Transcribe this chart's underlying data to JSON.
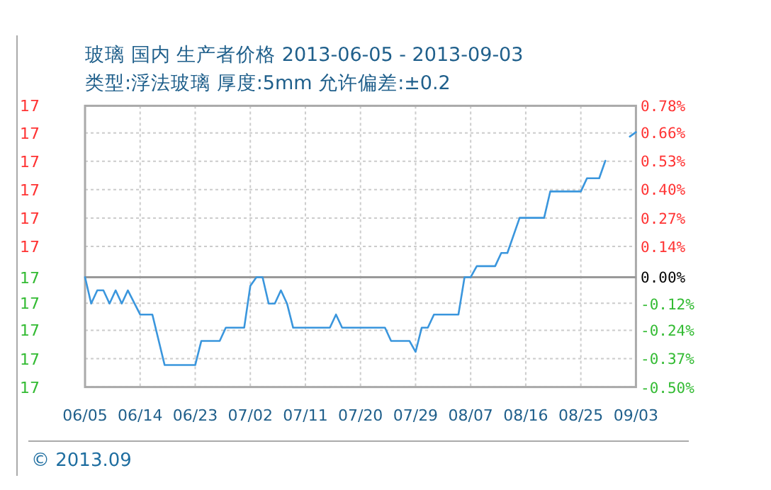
{
  "chart_data": {
    "type": "line",
    "title": "玻璃 国内 生产者价格 2013-06-05 - 2013-09-03",
    "subtitle": "类型:浮法玻璃 厚度:5mm 允许偏差:±0.2",
    "x": [
      "2013-06-05",
      "2013-06-06",
      "2013-06-07",
      "2013-06-08",
      "2013-06-09",
      "2013-06-10",
      "2013-06-11",
      "2013-06-12",
      "2013-06-14",
      "2013-06-16",
      "2013-06-18",
      "2013-06-23",
      "2013-06-24",
      "2013-06-27",
      "2013-06-28",
      "2013-07-01",
      "2013-07-02",
      "2013-07-03",
      "2013-07-04",
      "2013-07-05",
      "2013-07-06",
      "2013-07-07",
      "2013-07-08",
      "2013-07-09",
      "2013-07-15",
      "2013-07-16",
      "2013-07-17",
      "2013-07-24",
      "2013-07-25",
      "2013-07-28",
      "2013-07-29",
      "2013-07-30",
      "2013-07-31",
      "2013-08-01",
      "2013-08-05",
      "2013-08-06",
      "2013-08-07",
      "2013-08-08",
      "2013-08-11",
      "2013-08-12",
      "2013-08-13",
      "2013-08-15",
      "2013-08-19",
      "2013-08-20",
      "2013-08-25",
      "2013-08-26",
      "2013-08-28",
      "2013-08-29",
      "2013-08-30",
      "2013-09-02",
      "2013-09-03"
    ],
    "series": [
      {
        "color": "#3a96dd",
        "axis": "y2",
        "values": [
          0.0,
          -0.12,
          -0.06,
          -0.06,
          -0.12,
          -0.06,
          -0.12,
          -0.06,
          -0.17,
          -0.17,
          -0.4,
          -0.4,
          -0.29,
          -0.29,
          -0.23,
          -0.23,
          -0.04,
          0.0,
          0.0,
          -0.12,
          -0.12,
          -0.06,
          -0.12,
          -0.23,
          -0.23,
          -0.17,
          -0.23,
          -0.23,
          -0.29,
          -0.29,
          -0.34,
          -0.23,
          -0.23,
          -0.17,
          -0.17,
          0.0,
          0.0,
          0.05,
          0.05,
          0.11,
          0.11,
          0.27,
          0.27,
          0.39,
          0.39,
          0.45,
          0.45,
          0.53,
          null,
          0.64,
          0.66
        ]
      }
    ],
    "xlim": [
      "2013-06-05",
      "2013-09-03"
    ],
    "xticks": [
      {
        "value": "2013-06-05",
        "label": "06/05"
      },
      {
        "value": "2013-06-14",
        "label": "06/14"
      },
      {
        "value": "2013-06-23",
        "label": "06/23"
      },
      {
        "value": "2013-07-02",
        "label": "07/02"
      },
      {
        "value": "2013-07-11",
        "label": "07/11"
      },
      {
        "value": "2013-07-20",
        "label": "07/20"
      },
      {
        "value": "2013-07-29",
        "label": "07/29"
      },
      {
        "value": "2013-08-07",
        "label": "08/07"
      },
      {
        "value": "2013-08-16",
        "label": "08/16"
      },
      {
        "value": "2013-08-25",
        "label": "08/25"
      },
      {
        "value": "2013-09-03",
        "label": "09/03"
      }
    ],
    "ylim": [
      16.915,
      17.133
    ],
    "yticks": [
      {
        "value": 16.915,
        "label": "17"
      },
      {
        "value": 16.937,
        "label": "17"
      },
      {
        "value": 16.959,
        "label": "17"
      },
      {
        "value": 16.98,
        "label": "17"
      },
      {
        "value": 17,
        "label": "17"
      },
      {
        "value": 17.024,
        "label": "17"
      },
      {
        "value": 17.046,
        "label": "17"
      },
      {
        "value": 17.068,
        "label": "17"
      },
      {
        "value": 17.09,
        "label": "17"
      },
      {
        "value": 17.112,
        "label": "17"
      },
      {
        "value": 17.133,
        "label": "17"
      }
    ],
    "y2lim": [
      -0.5,
      0.78
    ],
    "y2ticks": [
      {
        "value": -0.5,
        "label": "-0.50%"
      },
      {
        "value": -0.37,
        "label": "-0.37%"
      },
      {
        "value": -0.24,
        "label": "-0.24%"
      },
      {
        "value": -0.12,
        "label": "-0.12%"
      },
      {
        "value": 0,
        "label": "0.00%"
      },
      {
        "value": 0.14,
        "label": "0.14%"
      },
      {
        "value": 0.27,
        "label": "0.27%"
      },
      {
        "value": 0.4,
        "label": "0.40%"
      },
      {
        "value": 0.53,
        "label": "0.53%"
      },
      {
        "value": 0.66,
        "label": "0.66%"
      },
      {
        "value": 0.78,
        "label": "0.78%"
      }
    ],
    "ref_lines": [
      {
        "axis": "y2",
        "value": 0,
        "color": "#999999"
      }
    ],
    "grid": true,
    "annotations": [
      "© 2013.09"
    ]
  }
}
